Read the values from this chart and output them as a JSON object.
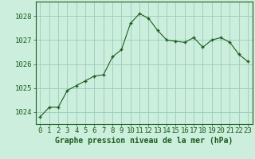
{
  "x": [
    0,
    1,
    2,
    3,
    4,
    5,
    6,
    7,
    8,
    9,
    10,
    11,
    12,
    13,
    14,
    15,
    16,
    17,
    18,
    19,
    20,
    21,
    22,
    23
  ],
  "y": [
    1023.8,
    1024.2,
    1024.2,
    1024.9,
    1025.1,
    1025.3,
    1025.5,
    1025.55,
    1026.3,
    1026.6,
    1027.7,
    1028.1,
    1027.9,
    1027.4,
    1027.0,
    1026.95,
    1026.9,
    1027.1,
    1026.7,
    1027.0,
    1027.1,
    1026.9,
    1026.4,
    1026.1
  ],
  "line_color": "#1e5c1e",
  "marker_color": "#1e5c1e",
  "bg_color": "#cceedd",
  "grid_color": "#99ccbb",
  "border_color": "#1e5c1e",
  "xlabel": "Graphe pression niveau de la mer (hPa)",
  "xlabel_fontsize": 7,
  "ylabel_ticks": [
    1024,
    1025,
    1026,
    1027,
    1028
  ],
  "ylim": [
    1023.5,
    1028.6
  ],
  "xlim": [
    -0.5,
    23.5
  ],
  "tick_fontsize": 6.5,
  "label_color": "#1e5c1e"
}
